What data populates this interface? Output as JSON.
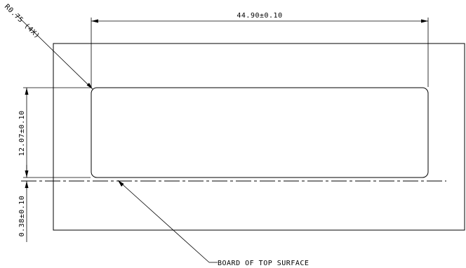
{
  "dimensions": {
    "width_label": "44.90±0.10",
    "height_label": "12.07±0.10",
    "offset_label": "0.38±0.10",
    "radius_label": "R0.75 (4X)"
  },
  "annotations": {
    "surface_label": "BOARD OF TOP SURFACE"
  }
}
